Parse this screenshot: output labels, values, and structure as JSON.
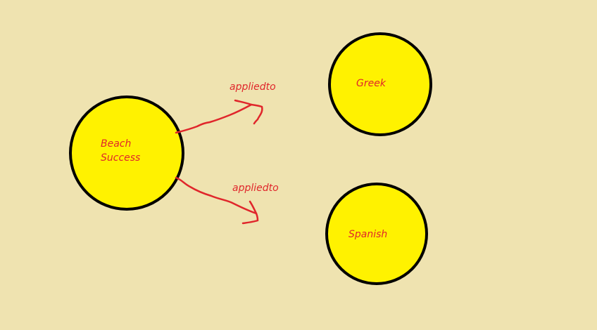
{
  "colors": {
    "background": "#efe3b0",
    "node_fill": "#fff200",
    "node_stroke": "#000000",
    "text": "#e0262b",
    "edge": "#e0262b"
  },
  "nodes": {
    "beach": {
      "label_line1": "Beach",
      "label_line2": "Success"
    },
    "greek": {
      "label": "Greek"
    },
    "spanish": {
      "label": "Spanish"
    }
  },
  "edges": [
    {
      "from": "Beach Success",
      "to": "Greek",
      "label": "appliedto"
    },
    {
      "from": "Beach Success",
      "to": "Spanish",
      "label": "appliedto"
    }
  ]
}
